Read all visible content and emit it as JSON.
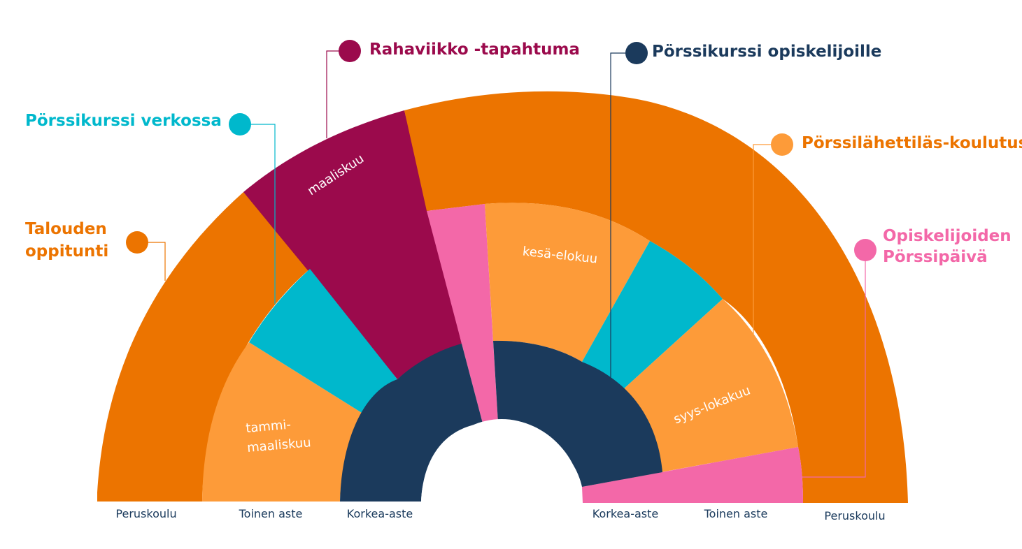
{
  "colors": {
    "dark_orange": "#ec7400",
    "light_orange": "#fd9b39",
    "magenta": "#9b0a4c",
    "cyan": "#00b8cc",
    "pink": "#f368a8",
    "navy": "#1b3a5c"
  },
  "events": [
    {
      "id": "talouden",
      "lines": [
        "Talouden",
        "oppitunti"
      ],
      "color": "#ec7400"
    },
    {
      "id": "verkossa",
      "lines": [
        "Pörssikurssi verkossa"
      ],
      "color": "#00b8cc"
    },
    {
      "id": "rahaviikko",
      "lines": [
        "Rahaviikko -tapahtuma"
      ],
      "color": "#9b0a4c"
    },
    {
      "id": "opiskelijoille",
      "lines": [
        "Pörssikurssi opiskelijoille"
      ],
      "color": "#1b3a5c"
    },
    {
      "id": "lahettilas",
      "lines": [
        "Pörssilähettiläs-koulutus"
      ],
      "color": "#ec7400"
    },
    {
      "id": "paiva",
      "lines": [
        "Opiskelijoiden",
        "Pörssipäivä"
      ],
      "color": "#f368a8"
    }
  ],
  "segment_labels": {
    "tammi": [
      "tammi-",
      "maaliskuu"
    ],
    "maaliskuu": "maaliskuu",
    "kesa": "kesä-elokuu",
    "syys": "syys-lokakuu"
  },
  "base_labels": {
    "left": [
      "Peruskoulu",
      "Toinen aste",
      "Korkea-aste"
    ],
    "right": [
      "Korkea-aste",
      "Toinen aste",
      "Peruskoulu"
    ]
  }
}
